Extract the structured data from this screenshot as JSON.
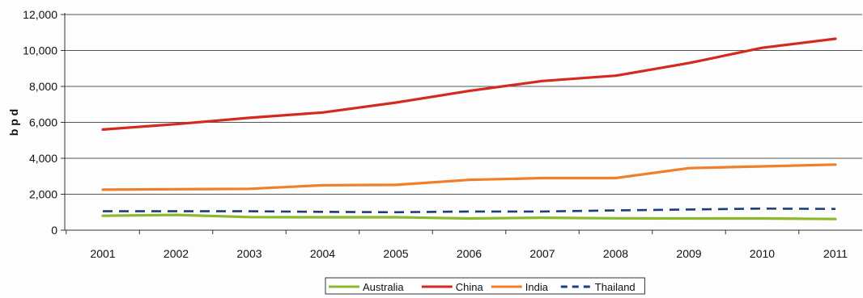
{
  "chart_data": {
    "type": "line",
    "ylabel": "b p d",
    "xlabel": "",
    "title": "",
    "ylim": [
      0,
      12000
    ],
    "yticks": [
      0,
      2000,
      4000,
      6000,
      8000,
      10000,
      12000
    ],
    "ytick_labels": [
      "0",
      "2,000",
      "4,000",
      "6,000",
      "8,000",
      "10,000",
      "12,000"
    ],
    "categories": [
      "2001",
      "2002",
      "2003",
      "2004",
      "2005",
      "2006",
      "2007",
      "2008",
      "2009",
      "2010",
      "2011"
    ],
    "grid": "horizontal",
    "legend_position": "bottom",
    "series": [
      {
        "name": "Australia",
        "color": "#8cb82b",
        "dash": "solid",
        "values": [
          800,
          850,
          730,
          720,
          720,
          650,
          690,
          660,
          650,
          650,
          620
        ]
      },
      {
        "name": "China",
        "color": "#d42a1e",
        "dash": "solid",
        "values": [
          5600,
          5900,
          6250,
          6550,
          7100,
          7750,
          8300,
          8600,
          9300,
          10150,
          10650
        ]
      },
      {
        "name": "India",
        "color": "#f07f2a",
        "dash": "solid",
        "values": [
          2250,
          2280,
          2300,
          2500,
          2520,
          2800,
          2900,
          2900,
          3450,
          3550,
          3650
        ]
      },
      {
        "name": "Thailand",
        "color": "#1f3c7a",
        "dash": "dashed",
        "values": [
          1050,
          1050,
          1050,
          1020,
          1000,
          1040,
          1040,
          1100,
          1150,
          1200,
          1180
        ]
      }
    ]
  }
}
